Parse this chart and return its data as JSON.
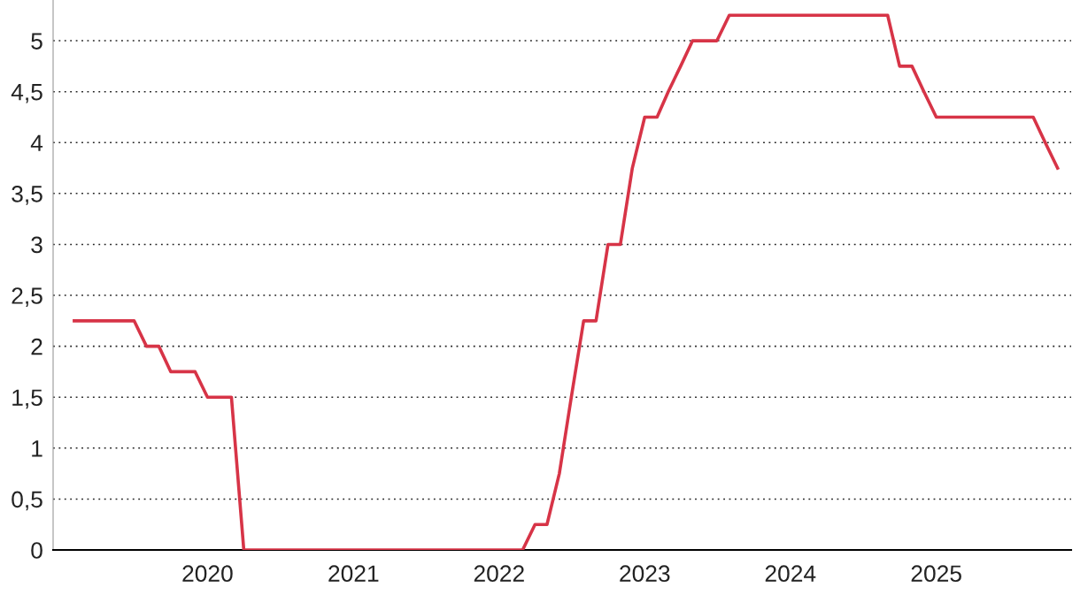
{
  "chart_data": {
    "type": "line",
    "x": [
      "2019-02",
      "2019-03",
      "2019-04",
      "2019-05",
      "2019-06",
      "2019-07",
      "2019-08",
      "2019-09",
      "2019-10",
      "2019-11",
      "2019-12",
      "2020-01",
      "2020-02",
      "2020-03",
      "2020-04",
      "2020-05",
      "2020-06",
      "2020-07",
      "2020-08",
      "2020-09",
      "2020-10",
      "2020-11",
      "2020-12",
      "2021-01",
      "2021-02",
      "2021-03",
      "2021-04",
      "2021-05",
      "2021-06",
      "2021-07",
      "2021-08",
      "2021-09",
      "2021-10",
      "2021-11",
      "2021-12",
      "2022-01",
      "2022-02",
      "2022-03",
      "2022-04",
      "2022-05",
      "2022-06",
      "2022-07",
      "2022-08",
      "2022-09",
      "2022-10",
      "2022-11",
      "2022-12",
      "2023-01",
      "2023-02",
      "2023-03",
      "2023-04",
      "2023-05",
      "2023-06",
      "2023-07",
      "2023-08",
      "2023-09",
      "2023-10",
      "2023-11",
      "2023-12",
      "2024-01",
      "2024-02",
      "2024-03",
      "2024-04",
      "2024-05",
      "2024-06",
      "2024-07",
      "2024-08",
      "2024-09",
      "2024-10",
      "2024-11",
      "2024-12",
      "2025-01",
      "2025-02",
      "2025-03",
      "2025-04",
      "2025-05",
      "2025-06",
      "2025-07",
      "2025-08",
      "2025-09",
      "2025-10",
      "2025-11"
    ],
    "series": [
      {
        "color": "#d73447",
        "values": [
          2.25,
          2.25,
          2.25,
          2.25,
          2.25,
          2.25,
          2.0,
          2.0,
          1.75,
          1.75,
          1.75,
          1.5,
          1.5,
          1.5,
          0,
          0,
          0,
          0,
          0,
          0,
          0,
          0,
          0,
          0,
          0,
          0,
          0,
          0,
          0,
          0,
          0,
          0,
          0,
          0,
          0,
          0,
          0,
          0,
          0.25,
          0.25,
          0.75,
          1.5,
          2.25,
          2.25,
          3.0,
          3.0,
          3.75,
          4.25,
          4.25,
          4.5,
          4.75,
          5.0,
          5.0,
          5.0,
          5.25,
          5.25,
          5.25,
          5.25,
          5.25,
          5.25,
          5.25,
          5.25,
          5.25,
          5.25,
          5.25,
          5.25,
          5.25,
          5.25,
          4.75,
          4.75,
          4.5,
          4.25,
          4.25,
          4.25,
          4.25,
          4.25,
          4.25,
          4.25,
          4.25,
          4.25,
          4.0,
          3.75
        ]
      }
    ],
    "xlim": [
      "2018-12-10",
      "2025-12-05"
    ],
    "xticks": [
      "2020",
      "2021",
      "2022",
      "2023",
      "2024",
      "2025"
    ],
    "ylim": [
      0,
      5.4
    ],
    "yticks": [
      0,
      {
        "value": 0.5,
        "label": "0,5"
      },
      1,
      {
        "value": 1.5,
        "label": "1,5"
      },
      2,
      {
        "value": 2.5,
        "label": "2,5"
      },
      3,
      {
        "value": 3.5,
        "label": "3,5"
      },
      4,
      {
        "value": 4.5,
        "label": "4,5"
      },
      5
    ],
    "grid": "y",
    "marker": "none",
    "line_style": "solid"
  }
}
